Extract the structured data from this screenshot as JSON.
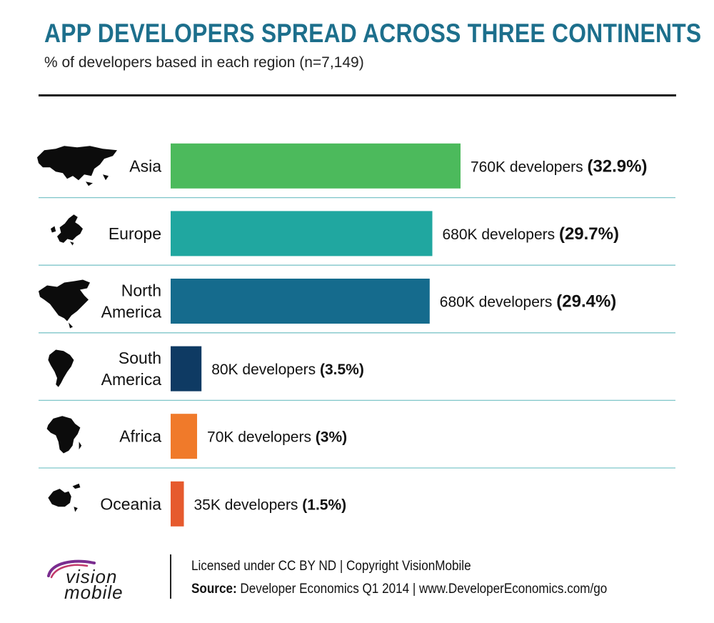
{
  "header": {
    "title": "APP DEVELOPERS SPREAD ACROSS THREE CONTINENTS",
    "subtitle": "% of developers based in each region (n=7,149)"
  },
  "chart_data": {
    "type": "bar",
    "orientation": "horizontal",
    "categories": [
      "Asia",
      "Europe",
      "North America",
      "South America",
      "Africa",
      "Oceania"
    ],
    "label_lines": [
      [
        "Asia"
      ],
      [
        "Europe"
      ],
      [
        "North",
        "America"
      ],
      [
        "South",
        "America"
      ],
      [
        "Africa"
      ],
      [
        "Oceania"
      ]
    ],
    "values": [
      32.9,
      29.7,
      29.4,
      3.5,
      3,
      1.5
    ],
    "developer_counts": [
      "760K developers",
      "680K developers",
      "680K developers",
      "80K developers",
      "70K developers",
      "35K developers"
    ],
    "percent_labels": [
      "(32.9%)",
      "(29.7%)",
      "(29.4%)",
      "(3.5%)",
      "(3%)",
      "(1.5%)"
    ],
    "colors": [
      "#4cba5c",
      "#20a7a0",
      "#156b8d",
      "#0e3a63",
      "#f07a2a",
      "#e65a2e"
    ],
    "icons": [
      "asia-map-icon",
      "europe-map-icon",
      "north-america-map-icon",
      "south-america-map-icon",
      "africa-map-icon",
      "oceania-map-icon"
    ],
    "xlim": [
      0,
      32.9
    ],
    "grid": false,
    "legend": "none",
    "separator_color": "#7fc6c9"
  },
  "footer": {
    "license": "Licensed under CC BY ND | Copyright VisionMobile",
    "source_label": "Source:",
    "source_text": "Developer Economics Q1 2014 | www.DeveloperEconomics.com/go",
    "logo_line1": "vision",
    "logo_line2": "mobile"
  }
}
